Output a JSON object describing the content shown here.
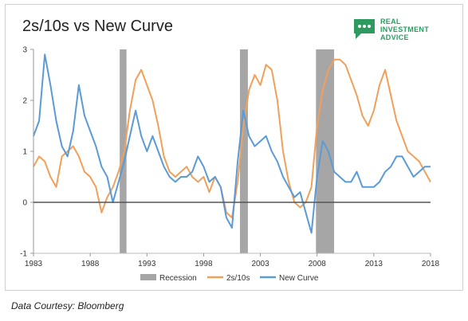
{
  "chart_data": {
    "type": "line",
    "title": "2s/10s vs New Curve",
    "xlabel": "",
    "ylabel": "",
    "xlim": [
      1983,
      2018
    ],
    "ylim": [
      -1,
      3
    ],
    "x_ticks": [
      "1983",
      "1988",
      "1993",
      "1998",
      "2003",
      "2008",
      "2013",
      "2018"
    ],
    "y_ticks": [
      "-1",
      "0",
      "1",
      "2",
      "3"
    ],
    "grid": false,
    "zero_line": 0,
    "legend": {
      "position": "bottom",
      "entries": [
        "Recession",
        "2s/10s",
        "New Curve"
      ]
    },
    "recessions": [
      {
        "name": "Recession",
        "start": 1990.6,
        "end": 1991.2
      },
      {
        "name": "Recession",
        "start": 2001.2,
        "end": 2001.9
      },
      {
        "name": "Recession",
        "start": 2007.9,
        "end": 2009.5
      }
    ],
    "series": [
      {
        "name": "2s/10s",
        "color": "#f0a05a",
        "x": [
          1983.0,
          1983.5,
          1984.0,
          1984.5,
          1985.0,
          1985.5,
          1986.0,
          1986.5,
          1987.0,
          1987.5,
          1988.0,
          1988.5,
          1989.0,
          1989.5,
          1990.0,
          1990.5,
          1991.0,
          1991.5,
          1992.0,
          1992.5,
          1993.0,
          1993.5,
          1994.0,
          1994.5,
          1995.0,
          1995.5,
          1996.0,
          1996.5,
          1997.0,
          1997.5,
          1998.0,
          1998.5,
          1999.0,
          1999.5,
          2000.0,
          2000.5,
          2001.0,
          2001.5,
          2002.0,
          2002.5,
          2003.0,
          2003.5,
          2004.0,
          2004.5,
          2005.0,
          2005.5,
          2006.0,
          2006.5,
          2007.0,
          2007.5,
          2008.0,
          2008.5,
          2009.0,
          2009.5,
          2010.0,
          2010.5,
          2011.0,
          2011.5,
          2012.0,
          2012.5,
          2013.0,
          2013.5,
          2014.0,
          2014.5,
          2015.0,
          2015.5,
          2016.0,
          2016.5,
          2017.0,
          2017.5,
          2018.0
        ],
        "values": [
          0.7,
          0.9,
          0.8,
          0.5,
          0.3,
          0.9,
          1.0,
          1.1,
          0.9,
          0.6,
          0.5,
          0.3,
          -0.2,
          0.1,
          0.3,
          0.6,
          1.0,
          1.8,
          2.4,
          2.6,
          2.3,
          2.0,
          1.5,
          0.9,
          0.6,
          0.5,
          0.6,
          0.7,
          0.5,
          0.4,
          0.5,
          0.2,
          0.5,
          0.3,
          -0.2,
          -0.3,
          0.4,
          1.5,
          2.2,
          2.5,
          2.3,
          2.7,
          2.6,
          2.0,
          1.0,
          0.4,
          0.0,
          -0.1,
          0.0,
          0.3,
          1.5,
          2.2,
          2.6,
          2.8,
          2.8,
          2.7,
          2.4,
          2.1,
          1.7,
          1.5,
          1.8,
          2.3,
          2.6,
          2.1,
          1.6,
          1.3,
          1.0,
          0.9,
          0.8,
          0.6,
          0.4
        ]
      },
      {
        "name": "New Curve",
        "color": "#5b9bd5",
        "x": [
          1983.0,
          1983.5,
          1984.0,
          1984.5,
          1985.0,
          1985.5,
          1986.0,
          1986.5,
          1987.0,
          1987.5,
          1988.0,
          1988.5,
          1989.0,
          1989.5,
          1990.0,
          1990.5,
          1991.0,
          1991.5,
          1992.0,
          1992.5,
          1993.0,
          1993.5,
          1994.0,
          1994.5,
          1995.0,
          1995.5,
          1996.0,
          1996.5,
          1997.0,
          1997.5,
          1998.0,
          1998.5,
          1999.0,
          1999.5,
          2000.0,
          2000.5,
          2001.0,
          2001.5,
          2002.0,
          2002.5,
          2003.0,
          2003.5,
          2004.0,
          2004.5,
          2005.0,
          2005.5,
          2006.0,
          2006.5,
          2007.0,
          2007.5,
          2008.0,
          2008.5,
          2009.0,
          2009.5,
          2010.0,
          2010.5,
          2011.0,
          2011.5,
          2012.0,
          2012.5,
          2013.0,
          2013.5,
          2014.0,
          2014.5,
          2015.0,
          2015.5,
          2016.0,
          2016.5,
          2017.0,
          2017.5,
          2018.0
        ],
        "values": [
          1.3,
          1.6,
          2.9,
          2.3,
          1.6,
          1.1,
          0.9,
          1.4,
          2.3,
          1.7,
          1.4,
          1.1,
          0.7,
          0.5,
          0.0,
          0.4,
          0.8,
          1.3,
          1.8,
          1.3,
          1.0,
          1.3,
          1.0,
          0.7,
          0.5,
          0.4,
          0.5,
          0.5,
          0.6,
          0.9,
          0.7,
          0.4,
          0.5,
          0.3,
          -0.3,
          -0.5,
          0.8,
          1.8,
          1.3,
          1.1,
          1.2,
          1.3,
          1.0,
          0.8,
          0.5,
          0.3,
          0.1,
          0.2,
          -0.2,
          -0.6,
          0.5,
          1.2,
          1.0,
          0.6,
          0.5,
          0.4,
          0.4,
          0.6,
          0.3,
          0.3,
          0.3,
          0.4,
          0.6,
          0.7,
          0.9,
          0.9,
          0.7,
          0.5,
          0.6,
          0.7,
          0.7
        ]
      }
    ]
  },
  "logo": {
    "line1": "REAL",
    "line2": "INVESTMENT",
    "line3": "ADVICE"
  },
  "credit": "Data Courtesy: Bloomberg"
}
